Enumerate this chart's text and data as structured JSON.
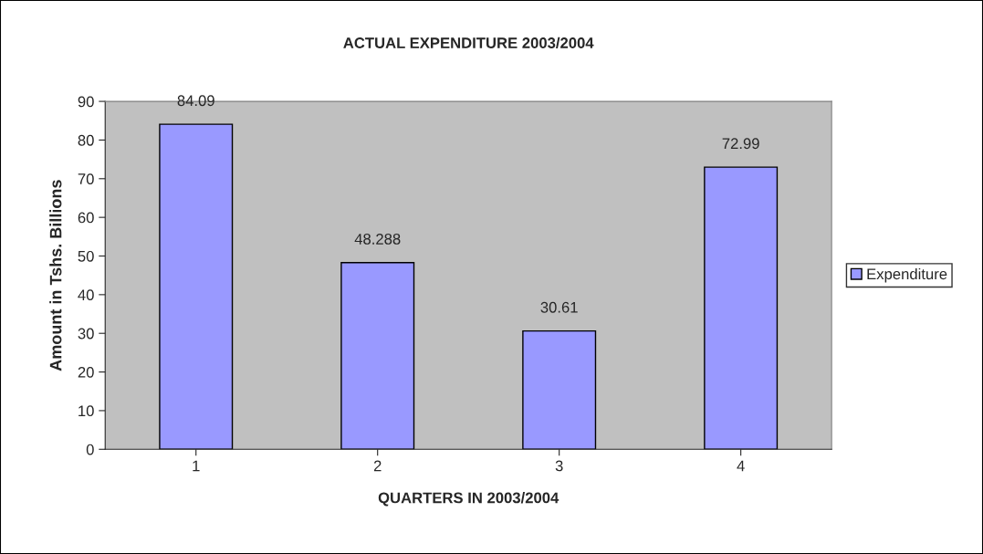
{
  "chart_data": {
    "type": "bar",
    "title": "ACTUAL EXPENDITURE 2003/2004",
    "xlabel": "QUARTERS IN 2003/2004",
    "ylabel": "Amount in Tshs. Billions",
    "categories": [
      "1",
      "2",
      "3",
      "4"
    ],
    "series": [
      {
        "name": "Expenditure",
        "color": "#9999ff",
        "values": [
          84.09,
          48.288,
          30.61,
          72.99
        ]
      }
    ],
    "ylim": [
      0,
      90
    ],
    "yticks": [
      0,
      10,
      20,
      30,
      40,
      50,
      60,
      70,
      80,
      90
    ],
    "grid": false,
    "legend": "right",
    "data_labels": true
  }
}
